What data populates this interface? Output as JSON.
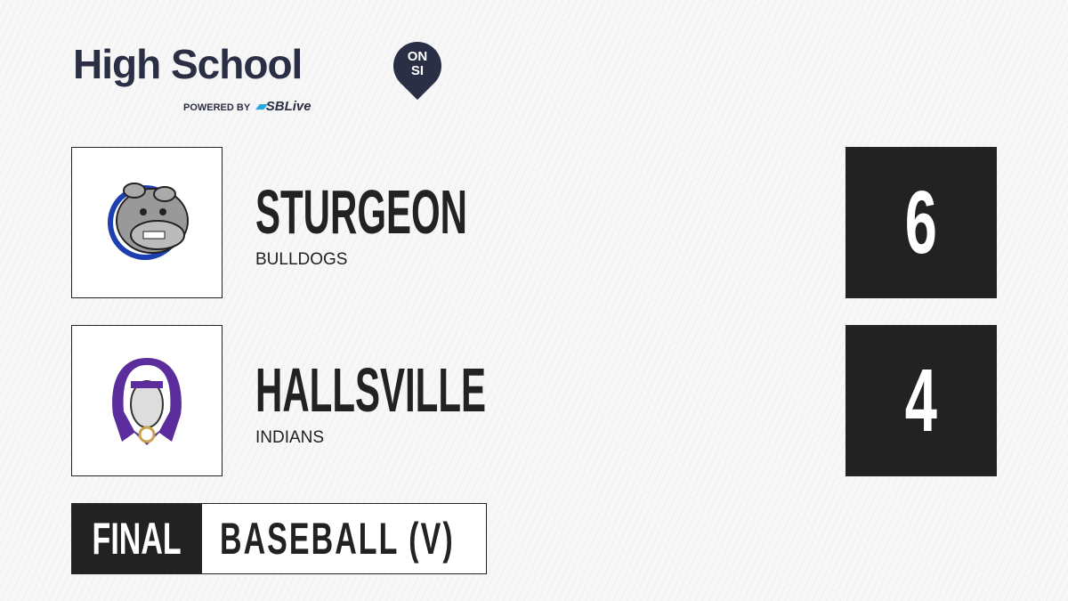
{
  "brand": {
    "title": "High School",
    "badge_top": "ON",
    "badge_bottom": "SI",
    "powered_by": "POWERED BY",
    "partner": "SBLive"
  },
  "teams": [
    {
      "name": "STURGEON",
      "mascot": "BULLDOGS",
      "score": "6",
      "logo_icon": "bulldog-logo"
    },
    {
      "name": "HALLSVILLE",
      "mascot": "INDIANS",
      "score": "4",
      "logo_icon": "indian-head-logo"
    }
  ],
  "status": {
    "label": "FINAL",
    "sport": "BASEBALL (V)"
  },
  "colors": {
    "dark": "#222222",
    "brand_navy": "#2a2f45",
    "sblive_blue": "#29a8e0"
  }
}
